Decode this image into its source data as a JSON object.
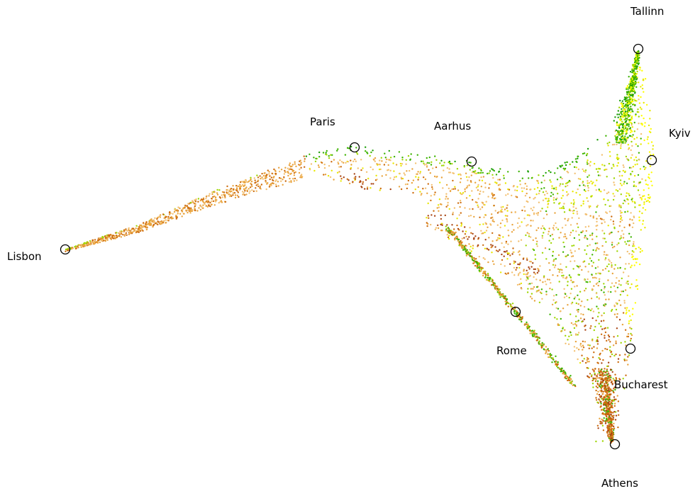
{
  "chart_data": {
    "type": "scatter",
    "title": "",
    "xlabel": "",
    "ylabel": "",
    "axes_visible": false,
    "grid": false,
    "legend": "none",
    "colors": {
      "dark_green": "#1a9e05",
      "green": "#3db300",
      "yellow_green": "#9ed600",
      "yellow": "#e8e800",
      "bright_yellow": "#ffff00",
      "light_orange": "#f3c070",
      "orange": "#e9a33c",
      "dark_orange": "#cd6c0f",
      "rust": "#a84414",
      "marker": "#000000"
    },
    "cities": [
      {
        "name": "Tallinn"
      },
      {
        "name": "Kyiv"
      },
      {
        "name": "Paris"
      },
      {
        "name": "Aarhus"
      },
      {
        "name": "Lisbon"
      },
      {
        "name": "Rome"
      },
      {
        "name": "Bucharest"
      },
      {
        "name": "Athens"
      }
    ]
  }
}
